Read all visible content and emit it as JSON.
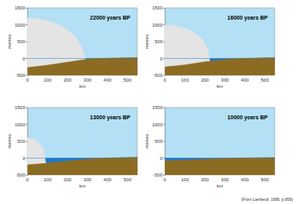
{
  "chart_data": [
    {
      "type": "area",
      "title": "22000 years BP",
      "xlabel": "km",
      "ylabel": "metres",
      "xlim": [
        0,
        550
      ],
      "xticks": [
        0,
        100,
        200,
        300,
        400,
        500
      ],
      "ylim": [
        -500,
        1500
      ],
      "yticks": [
        -500,
        0,
        500,
        1000,
        1500
      ],
      "series": [
        {
          "color": "#1f78c8",
          "x": [
            0,
            550
          ],
          "values": [
            0,
            0
          ]
        },
        {
          "color": "#e4e4e4",
          "x": [
            0,
            50,
            100,
            150,
            200,
            240,
            270,
            290
          ],
          "values": [
            1200,
            1180,
            1120,
            1020,
            850,
            650,
            350,
            -30
          ]
        },
        {
          "color": "#8c6c22",
          "x": [
            0,
            100,
            200,
            300,
            340,
            550
          ],
          "values": [
            -270,
            -200,
            -110,
            -20,
            0,
            30
          ]
        }
      ]
    },
    {
      "type": "area",
      "title": "16000 years BP",
      "xlabel": "km",
      "ylabel": "metres",
      "xlim": [
        0,
        550
      ],
      "xticks": [
        0,
        100,
        200,
        300,
        400,
        500
      ],
      "ylim": [
        -500,
        1500
      ],
      "yticks": [
        -500,
        0,
        500,
        1000,
        1500
      ],
      "series": [
        {
          "color": "#1f78c8",
          "x": [
            0,
            550
          ],
          "values": [
            0,
            0
          ]
        },
        {
          "color": "#e4e4e4",
          "x": [
            0,
            50,
            100,
            150,
            190,
            215,
            225
          ],
          "values": [
            1000,
            970,
            900,
            760,
            560,
            250,
            -90
          ]
        },
        {
          "color": "#8c6c22",
          "x": [
            0,
            100,
            200,
            300,
            380,
            550
          ],
          "values": [
            -250,
            -190,
            -100,
            -30,
            0,
            30
          ]
        }
      ]
    },
    {
      "type": "area",
      "title": "13000 years BP",
      "xlabel": "km",
      "ylabel": "metres",
      "xlim": [
        0,
        550
      ],
      "xticks": [
        0,
        100,
        200,
        300,
        400,
        500
      ],
      "ylim": [
        -500,
        1500
      ],
      "yticks": [
        -500,
        0,
        500,
        1000,
        1500
      ],
      "series": [
        {
          "color": "#1f78c8",
          "x": [
            0,
            550
          ],
          "values": [
            0,
            0
          ]
        },
        {
          "color": "#e4e4e4",
          "x": [
            0,
            30,
            60,
            80,
            92
          ],
          "values": [
            600,
            560,
            430,
            250,
            -150
          ]
        },
        {
          "color": "#8c6c22",
          "x": [
            0,
            100,
            200,
            300,
            380,
            550
          ],
          "values": [
            -200,
            -150,
            -90,
            -30,
            0,
            30
          ]
        }
      ]
    },
    {
      "type": "area",
      "title": "10000 years BP",
      "xlabel": "km",
      "ylabel": "metres",
      "xlim": [
        0,
        550
      ],
      "xticks": [
        0,
        100,
        200,
        300,
        400,
        500
      ],
      "ylim": [
        -500,
        1500
      ],
      "yticks": [
        -500,
        0,
        500,
        1000,
        1500
      ],
      "series": [
        {
          "color": "#1f78c8",
          "x": [
            0,
            550
          ],
          "values": [
            0,
            0
          ]
        },
        {
          "color": "#8c6c22",
          "x": [
            0,
            100,
            200,
            300,
            340,
            550
          ],
          "values": [
            -80,
            -60,
            -35,
            -10,
            0,
            20
          ]
        }
      ]
    }
  ],
  "source": "(From Lambeck, 1996, p.859)"
}
